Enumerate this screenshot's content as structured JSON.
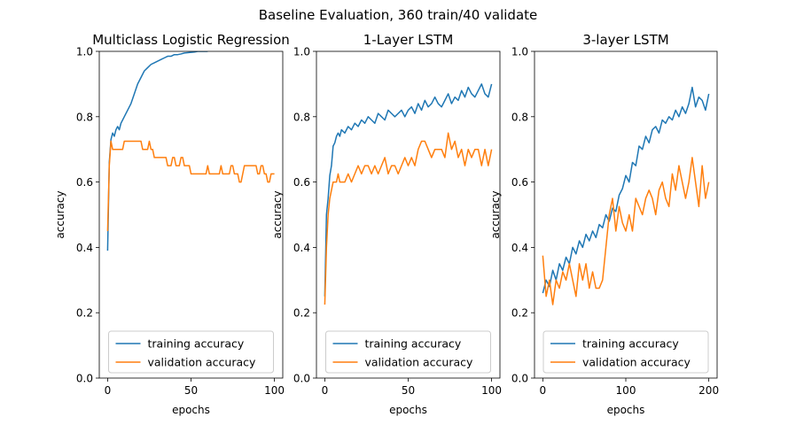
{
  "figure": {
    "suptitle": "Baseline Evaluation, 360 train/40 validate"
  },
  "colors": {
    "training": "#1f77b4",
    "validation": "#ff7f0e",
    "axis": "#000000",
    "legend_border": "#cccccc"
  },
  "chart_data": [
    {
      "type": "line",
      "title": "Multiclass Logistic Regression",
      "xlabel": "epochs",
      "ylabel": "accuracy",
      "xlim": [
        -5,
        105
      ],
      "ylim": [
        0,
        1
      ],
      "xticks": [
        0,
        50,
        100
      ],
      "yticks": [
        0.0,
        0.2,
        0.4,
        0.6,
        0.8,
        1.0
      ],
      "grid": false,
      "legend": "lower-center",
      "series": [
        {
          "name": "training accuracy",
          "x": [
            0,
            1,
            2,
            3,
            4,
            5,
            6,
            7,
            8,
            9,
            10,
            12,
            14,
            16,
            18,
            20,
            22,
            24,
            26,
            28,
            30,
            32,
            34,
            36,
            38,
            40,
            42,
            44,
            46,
            48,
            50,
            52,
            54,
            56,
            58,
            60
          ],
          "y": [
            0.39,
            0.66,
            0.73,
            0.75,
            0.74,
            0.76,
            0.77,
            0.76,
            0.78,
            0.79,
            0.8,
            0.82,
            0.84,
            0.87,
            0.9,
            0.92,
            0.94,
            0.95,
            0.96,
            0.965,
            0.97,
            0.975,
            0.98,
            0.985,
            0.985,
            0.99,
            0.99,
            0.992,
            0.995,
            0.996,
            0.997,
            0.998,
            1.0,
            1.0,
            1.0,
            1.0
          ]
        },
        {
          "name": "validation accuracy",
          "x": [
            0,
            1,
            2,
            3,
            4,
            5,
            6,
            7,
            8,
            9,
            10,
            11,
            12,
            13,
            14,
            15,
            16,
            17,
            18,
            19,
            20,
            21,
            22,
            23,
            24,
            25,
            26,
            27,
            28,
            29,
            30,
            31,
            32,
            33,
            34,
            35,
            36,
            37,
            38,
            39,
            40,
            41,
            42,
            43,
            44,
            45,
            46,
            47,
            48,
            49,
            50,
            51,
            52,
            53,
            54,
            55,
            56,
            57,
            58,
            59,
            60,
            61,
            62,
            63,
            64,
            65,
            66,
            67,
            68,
            69,
            70,
            71,
            72,
            73,
            74,
            75,
            76,
            77,
            78,
            79,
            80,
            81,
            82,
            83,
            84,
            85,
            86,
            87,
            88,
            89,
            90,
            91,
            92,
            93,
            94,
            95,
            96,
            97,
            98,
            99,
            100
          ],
          "y": [
            0.45,
            0.65,
            0.725,
            0.7,
            0.7,
            0.7,
            0.7,
            0.7,
            0.7,
            0.7,
            0.725,
            0.725,
            0.725,
            0.725,
            0.725,
            0.725,
            0.725,
            0.725,
            0.725,
            0.725,
            0.725,
            0.7,
            0.7,
            0.7,
            0.7,
            0.725,
            0.7,
            0.7,
            0.675,
            0.675,
            0.675,
            0.675,
            0.675,
            0.675,
            0.675,
            0.675,
            0.65,
            0.65,
            0.65,
            0.675,
            0.675,
            0.65,
            0.65,
            0.65,
            0.675,
            0.675,
            0.65,
            0.65,
            0.65,
            0.65,
            0.625,
            0.625,
            0.625,
            0.625,
            0.625,
            0.625,
            0.625,
            0.625,
            0.625,
            0.625,
            0.65,
            0.625,
            0.625,
            0.625,
            0.625,
            0.625,
            0.625,
            0.625,
            0.65,
            0.625,
            0.625,
            0.625,
            0.625,
            0.625,
            0.65,
            0.65,
            0.625,
            0.625,
            0.625,
            0.6,
            0.6,
            0.625,
            0.65,
            0.65,
            0.65,
            0.65,
            0.65,
            0.65,
            0.65,
            0.65,
            0.625,
            0.625,
            0.65,
            0.65,
            0.625,
            0.625,
            0.6,
            0.6,
            0.625,
            0.625,
            0.625
          ]
        }
      ]
    },
    {
      "type": "line",
      "title": "1-Layer LSTM",
      "xlabel": "epochs",
      "ylabel": "accuracy",
      "xlim": [
        -5,
        105
      ],
      "ylim": [
        0,
        1
      ],
      "xticks": [
        0,
        50,
        100
      ],
      "yticks": [
        0.0,
        0.2,
        0.4,
        0.6,
        0.8,
        1.0
      ],
      "grid": false,
      "legend": "lower-center",
      "series": [
        {
          "name": "training accuracy",
          "x": [
            0,
            1,
            2,
            3,
            4,
            5,
            6,
            7,
            8,
            9,
            10,
            12,
            14,
            16,
            18,
            20,
            22,
            24,
            26,
            28,
            30,
            32,
            34,
            36,
            38,
            40,
            42,
            44,
            46,
            48,
            50,
            52,
            54,
            56,
            58,
            60,
            62,
            64,
            66,
            68,
            70,
            72,
            74,
            76,
            78,
            80,
            82,
            84,
            86,
            88,
            90,
            92,
            94,
            96,
            98,
            100
          ],
          "y": [
            0.25,
            0.5,
            0.55,
            0.62,
            0.65,
            0.71,
            0.72,
            0.74,
            0.75,
            0.74,
            0.76,
            0.75,
            0.77,
            0.76,
            0.78,
            0.77,
            0.79,
            0.78,
            0.8,
            0.79,
            0.78,
            0.81,
            0.8,
            0.79,
            0.82,
            0.81,
            0.8,
            0.81,
            0.82,
            0.8,
            0.82,
            0.83,
            0.81,
            0.84,
            0.82,
            0.85,
            0.83,
            0.84,
            0.86,
            0.84,
            0.83,
            0.85,
            0.87,
            0.84,
            0.86,
            0.85,
            0.88,
            0.86,
            0.89,
            0.87,
            0.86,
            0.88,
            0.9,
            0.87,
            0.86,
            0.9
          ]
        },
        {
          "name": "validation accuracy",
          "x": [
            0,
            1,
            2,
            3,
            4,
            5,
            6,
            7,
            8,
            9,
            10,
            12,
            14,
            16,
            18,
            20,
            22,
            24,
            26,
            28,
            30,
            32,
            34,
            36,
            38,
            40,
            42,
            44,
            46,
            48,
            50,
            52,
            54,
            56,
            58,
            60,
            62,
            64,
            66,
            68,
            70,
            72,
            74,
            76,
            78,
            80,
            82,
            84,
            86,
            88,
            90,
            92,
            94,
            96,
            98,
            100
          ],
          "y": [
            0.225,
            0.4,
            0.5,
            0.55,
            0.575,
            0.6,
            0.6,
            0.6,
            0.625,
            0.6,
            0.6,
            0.6,
            0.625,
            0.6,
            0.625,
            0.65,
            0.625,
            0.65,
            0.65,
            0.625,
            0.65,
            0.625,
            0.65,
            0.675,
            0.625,
            0.65,
            0.65,
            0.625,
            0.65,
            0.675,
            0.65,
            0.675,
            0.65,
            0.7,
            0.725,
            0.725,
            0.7,
            0.675,
            0.7,
            0.7,
            0.7,
            0.675,
            0.75,
            0.7,
            0.725,
            0.675,
            0.7,
            0.65,
            0.7,
            0.675,
            0.7,
            0.7,
            0.65,
            0.7,
            0.65,
            0.7
          ]
        }
      ]
    },
    {
      "type": "line",
      "title": "3-layer LSTM",
      "xlabel": "epochs",
      "ylabel": "accuracy",
      "xlim": [
        -10,
        210
      ],
      "ylim": [
        0,
        1
      ],
      "xticks": [
        0,
        100,
        200
      ],
      "yticks": [
        0.0,
        0.2,
        0.4,
        0.6,
        0.8,
        1.0
      ],
      "grid": false,
      "legend": "lower-center",
      "series": [
        {
          "name": "training accuracy",
          "x": [
            0,
            4,
            8,
            12,
            16,
            20,
            24,
            28,
            32,
            36,
            40,
            44,
            48,
            52,
            56,
            60,
            64,
            68,
            72,
            76,
            80,
            84,
            88,
            92,
            96,
            100,
            104,
            108,
            112,
            116,
            120,
            124,
            128,
            132,
            136,
            140,
            144,
            148,
            152,
            156,
            160,
            164,
            168,
            172,
            176,
            180,
            184,
            188,
            192,
            196,
            200
          ],
          "y": [
            0.26,
            0.3,
            0.28,
            0.33,
            0.3,
            0.35,
            0.33,
            0.37,
            0.35,
            0.4,
            0.38,
            0.42,
            0.4,
            0.44,
            0.42,
            0.45,
            0.43,
            0.47,
            0.46,
            0.5,
            0.48,
            0.52,
            0.51,
            0.56,
            0.58,
            0.62,
            0.6,
            0.66,
            0.65,
            0.71,
            0.7,
            0.74,
            0.72,
            0.76,
            0.77,
            0.75,
            0.79,
            0.78,
            0.8,
            0.79,
            0.82,
            0.8,
            0.83,
            0.81,
            0.84,
            0.89,
            0.83,
            0.86,
            0.85,
            0.82,
            0.87
          ]
        },
        {
          "name": "validation accuracy",
          "x": [
            0,
            4,
            8,
            12,
            16,
            20,
            24,
            28,
            32,
            36,
            40,
            44,
            48,
            52,
            56,
            60,
            64,
            68,
            72,
            76,
            80,
            84,
            88,
            92,
            96,
            100,
            104,
            108,
            112,
            116,
            120,
            124,
            128,
            132,
            136,
            140,
            144,
            148,
            152,
            156,
            160,
            164,
            168,
            172,
            176,
            180,
            184,
            188,
            192,
            196,
            200
          ],
          "y": [
            0.375,
            0.25,
            0.3,
            0.225,
            0.3,
            0.275,
            0.325,
            0.3,
            0.35,
            0.3,
            0.25,
            0.35,
            0.3,
            0.35,
            0.275,
            0.325,
            0.275,
            0.275,
            0.3,
            0.4,
            0.5,
            0.55,
            0.45,
            0.525,
            0.475,
            0.45,
            0.5,
            0.45,
            0.55,
            0.525,
            0.5,
            0.55,
            0.575,
            0.55,
            0.5,
            0.575,
            0.6,
            0.55,
            0.525,
            0.625,
            0.575,
            0.65,
            0.6,
            0.55,
            0.6,
            0.675,
            0.6,
            0.525,
            0.65,
            0.55,
            0.6
          ]
        }
      ]
    }
  ]
}
